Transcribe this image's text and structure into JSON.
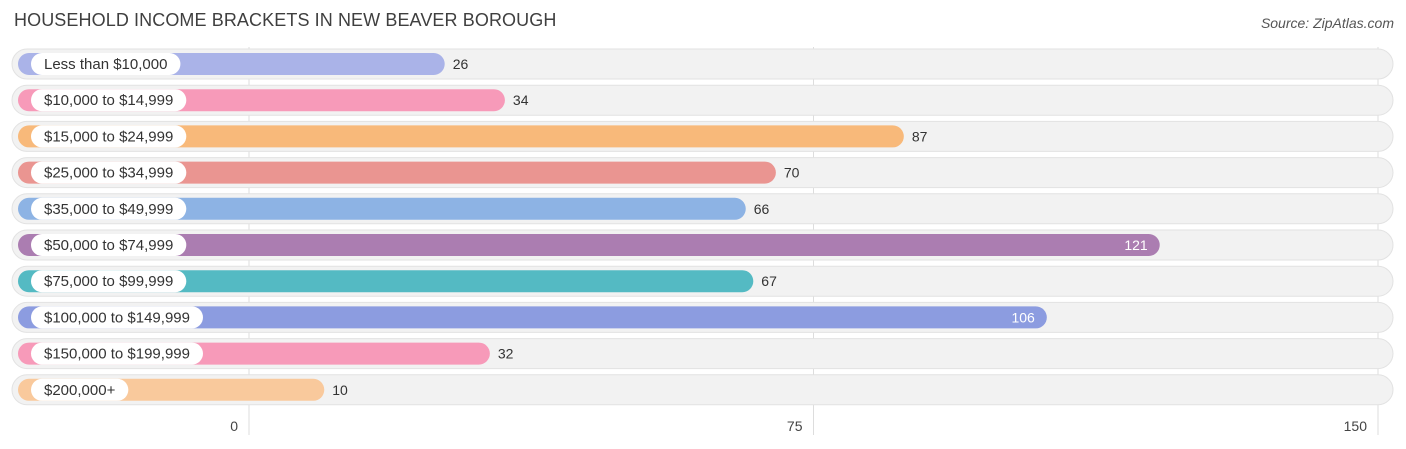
{
  "header": {
    "title": "HOUSEHOLD INCOME BRACKETS IN NEW BEAVER BOROUGH",
    "source": "Source: ZipAtlas.com"
  },
  "chart_data": {
    "type": "bar",
    "orientation": "horizontal",
    "title": "HOUSEHOLD INCOME BRACKETS IN NEW BEAVER BOROUGH",
    "categories": [
      "Less than $10,000",
      "$10,000 to $14,999",
      "$15,000 to $24,999",
      "$25,000 to $34,999",
      "$35,000 to $49,999",
      "$50,000 to $74,999",
      "$75,000 to $99,999",
      "$100,000 to $149,999",
      "$150,000 to $199,999",
      "$200,000+"
    ],
    "values": [
      26,
      34,
      87,
      70,
      66,
      121,
      67,
      106,
      32,
      10
    ],
    "colors": [
      "#aab3e8",
      "#f79ab9",
      "#f8b97a",
      "#ea9591",
      "#8db3e4",
      "#ab7db1",
      "#54bac3",
      "#8c9ce0",
      "#f79ab9",
      "#f9c99c"
    ],
    "xlim": [
      0,
      150
    ],
    "xticks": [
      0,
      75,
      150
    ],
    "grid": true
  }
}
